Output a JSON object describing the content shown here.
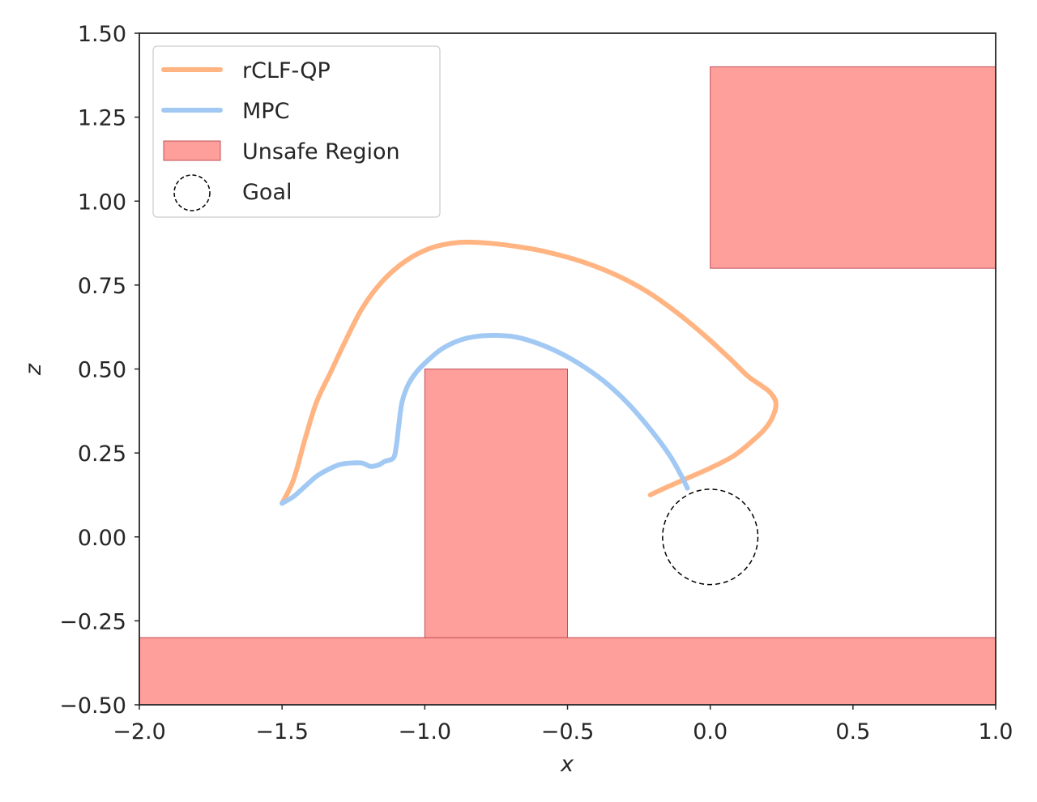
{
  "chart_data": {
    "type": "line",
    "title": "",
    "xlabel": "x",
    "ylabel": "z",
    "xlim": [
      -2.0,
      1.0
    ],
    "ylim": [
      -0.5,
      1.5
    ],
    "grid": false,
    "legend_position": "upper-left",
    "x_ticks": [
      -2.0,
      -1.5,
      -1.0,
      -0.5,
      0.0,
      0.5,
      1.0
    ],
    "x_tick_labels": [
      "−2.0",
      "−1.5",
      "−1.0",
      "−0.5",
      "0.0",
      "0.5",
      "1.0"
    ],
    "y_ticks": [
      -0.5,
      -0.25,
      0.0,
      0.25,
      0.5,
      0.75,
      1.0,
      1.25,
      1.5
    ],
    "y_tick_labels": [
      "−0.50",
      "−0.25",
      "0.00",
      "0.25",
      "0.50",
      "0.75",
      "1.00",
      "1.25",
      "1.50"
    ],
    "series": [
      {
        "name": "rCLF-QP",
        "color": "#ffb482",
        "points": [
          [
            -1.5,
            0.1
          ],
          [
            -1.46,
            0.17
          ],
          [
            -1.42,
            0.29
          ],
          [
            -1.38,
            0.4
          ],
          [
            -1.33,
            0.49
          ],
          [
            -1.28,
            0.58
          ],
          [
            -1.22,
            0.68
          ],
          [
            -1.15,
            0.76
          ],
          [
            -1.07,
            0.82
          ],
          [
            -0.98,
            0.86
          ],
          [
            -0.88,
            0.877
          ],
          [
            -0.78,
            0.875
          ],
          [
            -0.68,
            0.865
          ],
          [
            -0.58,
            0.85
          ],
          [
            -0.45,
            0.82
          ],
          [
            -0.33,
            0.78
          ],
          [
            -0.22,
            0.73
          ],
          [
            -0.12,
            0.67
          ],
          [
            -0.02,
            0.6
          ],
          [
            0.07,
            0.53
          ],
          [
            0.13,
            0.48
          ],
          [
            0.18,
            0.45
          ],
          [
            0.21,
            0.43
          ],
          [
            0.23,
            0.4
          ],
          [
            0.22,
            0.36
          ],
          [
            0.19,
            0.32
          ],
          [
            0.14,
            0.28
          ],
          [
            0.08,
            0.24
          ],
          [
            0.0,
            0.205
          ],
          [
            -0.08,
            0.175
          ],
          [
            -0.16,
            0.145
          ],
          [
            -0.21,
            0.125
          ]
        ]
      },
      {
        "name": "MPC",
        "color": "#a1c9f4",
        "points": [
          [
            -1.5,
            0.1
          ],
          [
            -1.46,
            0.12
          ],
          [
            -1.42,
            0.15
          ],
          [
            -1.38,
            0.18
          ],
          [
            -1.34,
            0.2
          ],
          [
            -1.3,
            0.215
          ],
          [
            -1.26,
            0.22
          ],
          [
            -1.22,
            0.22
          ],
          [
            -1.19,
            0.21
          ],
          [
            -1.16,
            0.215
          ],
          [
            -1.14,
            0.225
          ],
          [
            -1.11,
            0.235
          ],
          [
            -1.1,
            0.27
          ],
          [
            -1.09,
            0.34
          ],
          [
            -1.08,
            0.4
          ],
          [
            -1.06,
            0.45
          ],
          [
            -1.03,
            0.49
          ],
          [
            -0.99,
            0.525
          ],
          [
            -0.94,
            0.56
          ],
          [
            -0.88,
            0.585
          ],
          [
            -0.82,
            0.597
          ],
          [
            -0.75,
            0.6
          ],
          [
            -0.68,
            0.595
          ],
          [
            -0.6,
            0.575
          ],
          [
            -0.52,
            0.545
          ],
          [
            -0.44,
            0.505
          ],
          [
            -0.36,
            0.455
          ],
          [
            -0.28,
            0.39
          ],
          [
            -0.2,
            0.31
          ],
          [
            -0.14,
            0.24
          ],
          [
            -0.1,
            0.18
          ],
          [
            -0.08,
            0.145
          ]
        ]
      }
    ],
    "unsafe_regions": {
      "name": "Unsafe Region",
      "color": "#ff9f9b",
      "edge_color": "#c0505a",
      "rects": [
        {
          "x": [
            -2.0,
            1.0
          ],
          "z": [
            -0.5,
            -0.3
          ]
        },
        {
          "x": [
            -1.0,
            -0.5
          ],
          "z": [
            -0.3,
            0.5
          ]
        },
        {
          "x": [
            0.0,
            1.0
          ],
          "z": [
            0.8,
            1.4
          ]
        }
      ]
    },
    "goal": {
      "name": "Goal",
      "center": [
        0.0,
        0.0
      ],
      "radius": 0.167,
      "color": "#000000"
    },
    "legend": [
      {
        "label": "rCLF-QP",
        "kind": "line",
        "color": "#ffb482"
      },
      {
        "label": "MPC",
        "kind": "line",
        "color": "#a1c9f4"
      },
      {
        "label": "Unsafe Region",
        "kind": "patch",
        "color": "#ff9f9b"
      },
      {
        "label": "Goal",
        "kind": "circle",
        "color": "#000000"
      }
    ]
  }
}
